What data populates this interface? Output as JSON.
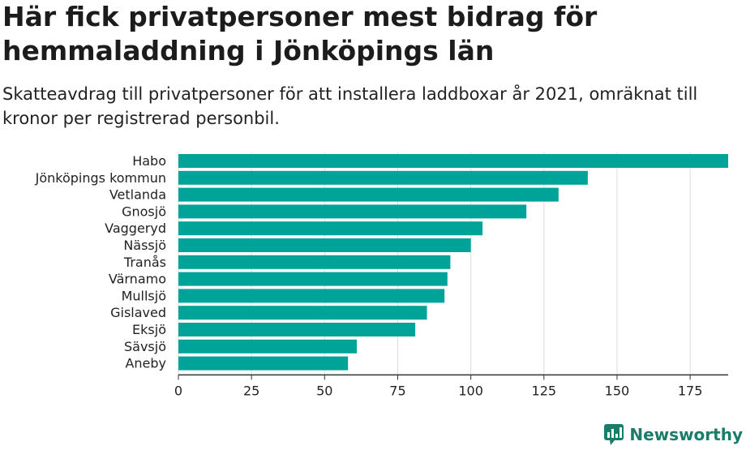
{
  "title": "Här fick privatpersoner mest bidrag för hemmaladdning i Jönköpings län",
  "subtitle": "Skatteavdrag till privatpersoner för att installera laddboxar år 2021, omräknat till kronor per registrerad personbil.",
  "brand": {
    "name": "Newsworthy",
    "icon": "newsworthy-logo-icon"
  },
  "colors": {
    "bar": "#00a398",
    "grid": "#dcdcdc",
    "axis": "#333333",
    "brand": "#1a7d6a"
  },
  "chart_data": {
    "type": "bar",
    "orientation": "horizontal",
    "categories": [
      "Habo",
      "Jönköpings kommun",
      "Vetlanda",
      "Gnosjö",
      "Vaggeryd",
      "Nässjö",
      "Tranås",
      "Värnamo",
      "Mullsjö",
      "Gislaved",
      "Eksjö",
      "Sävsjö",
      "Aneby"
    ],
    "values": [
      188,
      140,
      130,
      119,
      104,
      100,
      93,
      92,
      91,
      85,
      81,
      61,
      58
    ],
    "xlim": [
      0,
      188
    ],
    "xticks": [
      0,
      25,
      50,
      75,
      100,
      125,
      150,
      175
    ],
    "grid": true,
    "legend": "none"
  }
}
